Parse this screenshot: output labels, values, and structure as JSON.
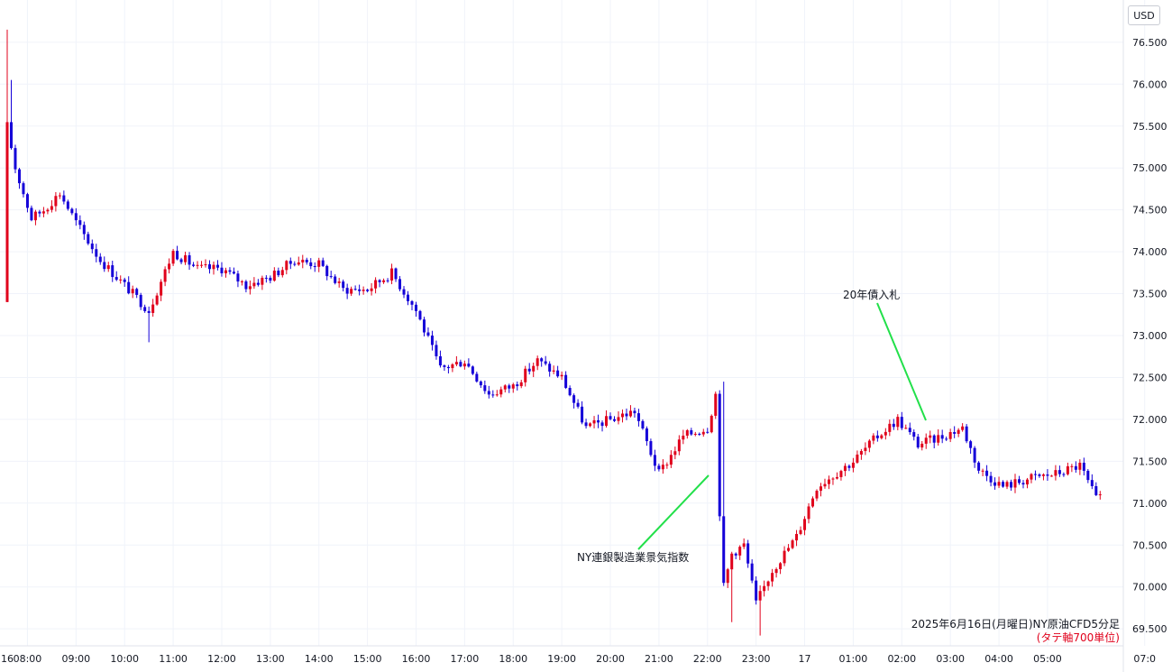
{
  "chart_data": {
    "type": "candlestick",
    "currency": "USD",
    "y_axis_ticks": [
      "76.500",
      "76.000",
      "75.500",
      "75.000",
      "74.500",
      "74.000",
      "73.500",
      "73.000",
      "72.500",
      "72.000",
      "71.500",
      "71.000",
      "70.500",
      "70.000",
      "69.500"
    ],
    "ylim": [
      69.35,
      76.85
    ],
    "x_axis_ticks": [
      "16",
      "08:00",
      "09:00",
      "10:00",
      "11:00",
      "12:00",
      "13:00",
      "14:00",
      "15:00",
      "16:00",
      "17:00",
      "18:00",
      "19:00",
      "20:00",
      "21:00",
      "22:00",
      "23:00",
      "17",
      "01:00",
      "02:00",
      "03:00",
      "04:00",
      "05:00",
      "07:0"
    ],
    "caption": "2025年6月16日(月曜日)NY原油CFD5分足",
    "caption_sub": "(タテ軸700単位)",
    "up_color": "#e0001b",
    "down_color": "#1400d8",
    "annotation_line_color": "#22e04a",
    "grid": true,
    "annotations": [
      {
        "label": "NY連銀製造業景気指数",
        "time": "21:30",
        "price": 71.3
      },
      {
        "label": "20年債入札",
        "time": "02:00",
        "price": 71.98
      }
    ],
    "anchors": [
      {
        "t": 0,
        "p": 73.4
      },
      {
        "t": 0.4,
        "p": 74.2
      },
      {
        "t": 1,
        "p": 75.5
      },
      {
        "t": 3,
        "p": 75.0
      },
      {
        "t": 7,
        "p": 74.4
      },
      {
        "t": 10,
        "p": 74.5
      },
      {
        "t": 14,
        "p": 74.7
      },
      {
        "t": 18,
        "p": 74.35
      },
      {
        "t": 24,
        "p": 73.9
      },
      {
        "t": 30,
        "p": 73.6
      },
      {
        "t": 36,
        "p": 73.3
      },
      {
        "t": 42,
        "p": 74.0
      },
      {
        "t": 48,
        "p": 73.8
      },
      {
        "t": 54,
        "p": 73.8
      },
      {
        "t": 60,
        "p": 73.6
      },
      {
        "t": 66,
        "p": 73.7
      },
      {
        "t": 72,
        "p": 73.9
      },
      {
        "t": 78,
        "p": 73.85
      },
      {
        "t": 84,
        "p": 73.55
      },
      {
        "t": 90,
        "p": 73.55
      },
      {
        "t": 96,
        "p": 73.75
      },
      {
        "t": 102,
        "p": 73.3
      },
      {
        "t": 108,
        "p": 72.6
      },
      {
        "t": 114,
        "p": 72.7
      },
      {
        "t": 120,
        "p": 72.3
      },
      {
        "t": 126,
        "p": 72.4
      },
      {
        "t": 132,
        "p": 72.7
      },
      {
        "t": 138,
        "p": 72.5
      },
      {
        "t": 144,
        "p": 71.9
      },
      {
        "t": 150,
        "p": 72.0
      },
      {
        "t": 156,
        "p": 72.1
      },
      {
        "t": 162,
        "p": 71.35
      },
      {
        "t": 168,
        "p": 71.8
      },
      {
        "t": 174,
        "p": 71.9
      },
      {
        "t": 176,
        "p": 72.3
      },
      {
        "t": 177,
        "p": 70.9
      },
      {
        "t": 178,
        "p": 70.0
      },
      {
        "t": 180,
        "p": 70.4
      },
      {
        "t": 183,
        "p": 70.5
      },
      {
        "t": 186,
        "p": 69.8
      },
      {
        "t": 190,
        "p": 70.2
      },
      {
        "t": 196,
        "p": 70.6
      },
      {
        "t": 201,
        "p": 71.2
      },
      {
        "t": 210,
        "p": 71.5
      },
      {
        "t": 216,
        "p": 71.8
      },
      {
        "t": 221,
        "p": 72.0
      },
      {
        "t": 226,
        "p": 71.7
      },
      {
        "t": 232,
        "p": 71.8
      },
      {
        "t": 237,
        "p": 71.9
      },
      {
        "t": 241,
        "p": 71.4
      },
      {
        "t": 247,
        "p": 71.2
      },
      {
        "t": 254,
        "p": 71.3
      },
      {
        "t": 260,
        "p": 71.35
      },
      {
        "t": 266,
        "p": 71.45
      },
      {
        "t": 270,
        "p": 71.05
      }
    ],
    "bar_count": 271,
    "bar_interval_minutes": 5
  }
}
